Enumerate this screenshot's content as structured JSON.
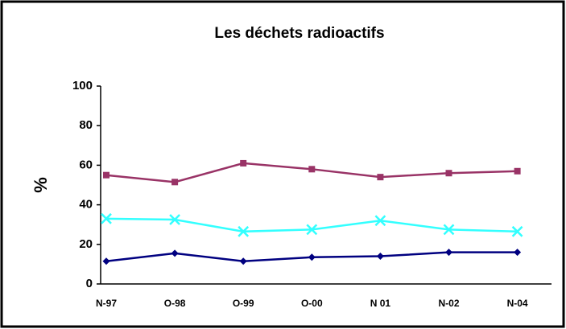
{
  "chart_data": {
    "type": "line",
    "title": "Les déchets radioactifs",
    "y_label": "%",
    "categories": [
      "N-97",
      "O-98",
      "O-99",
      "O-00",
      "N 01",
      "N-02",
      "N-04"
    ],
    "series": [
      {
        "color": "#993366",
        "marker": "square",
        "values": [
          55,
          51.5,
          61,
          58,
          54,
          56,
          57
        ]
      },
      {
        "color": "#33FFFF",
        "marker": "x",
        "values": [
          33,
          32.5,
          26.5,
          27.5,
          32,
          27.5,
          26.5
        ]
      },
      {
        "color": "#000080",
        "marker": "diamond",
        "values": [
          11.5,
          15.5,
          11.5,
          13.5,
          14,
          16,
          16
        ]
      }
    ],
    "ylim": [
      0,
      100
    ],
    "yticks": [
      0,
      20,
      40,
      60,
      80,
      100
    ],
    "grid": false
  }
}
